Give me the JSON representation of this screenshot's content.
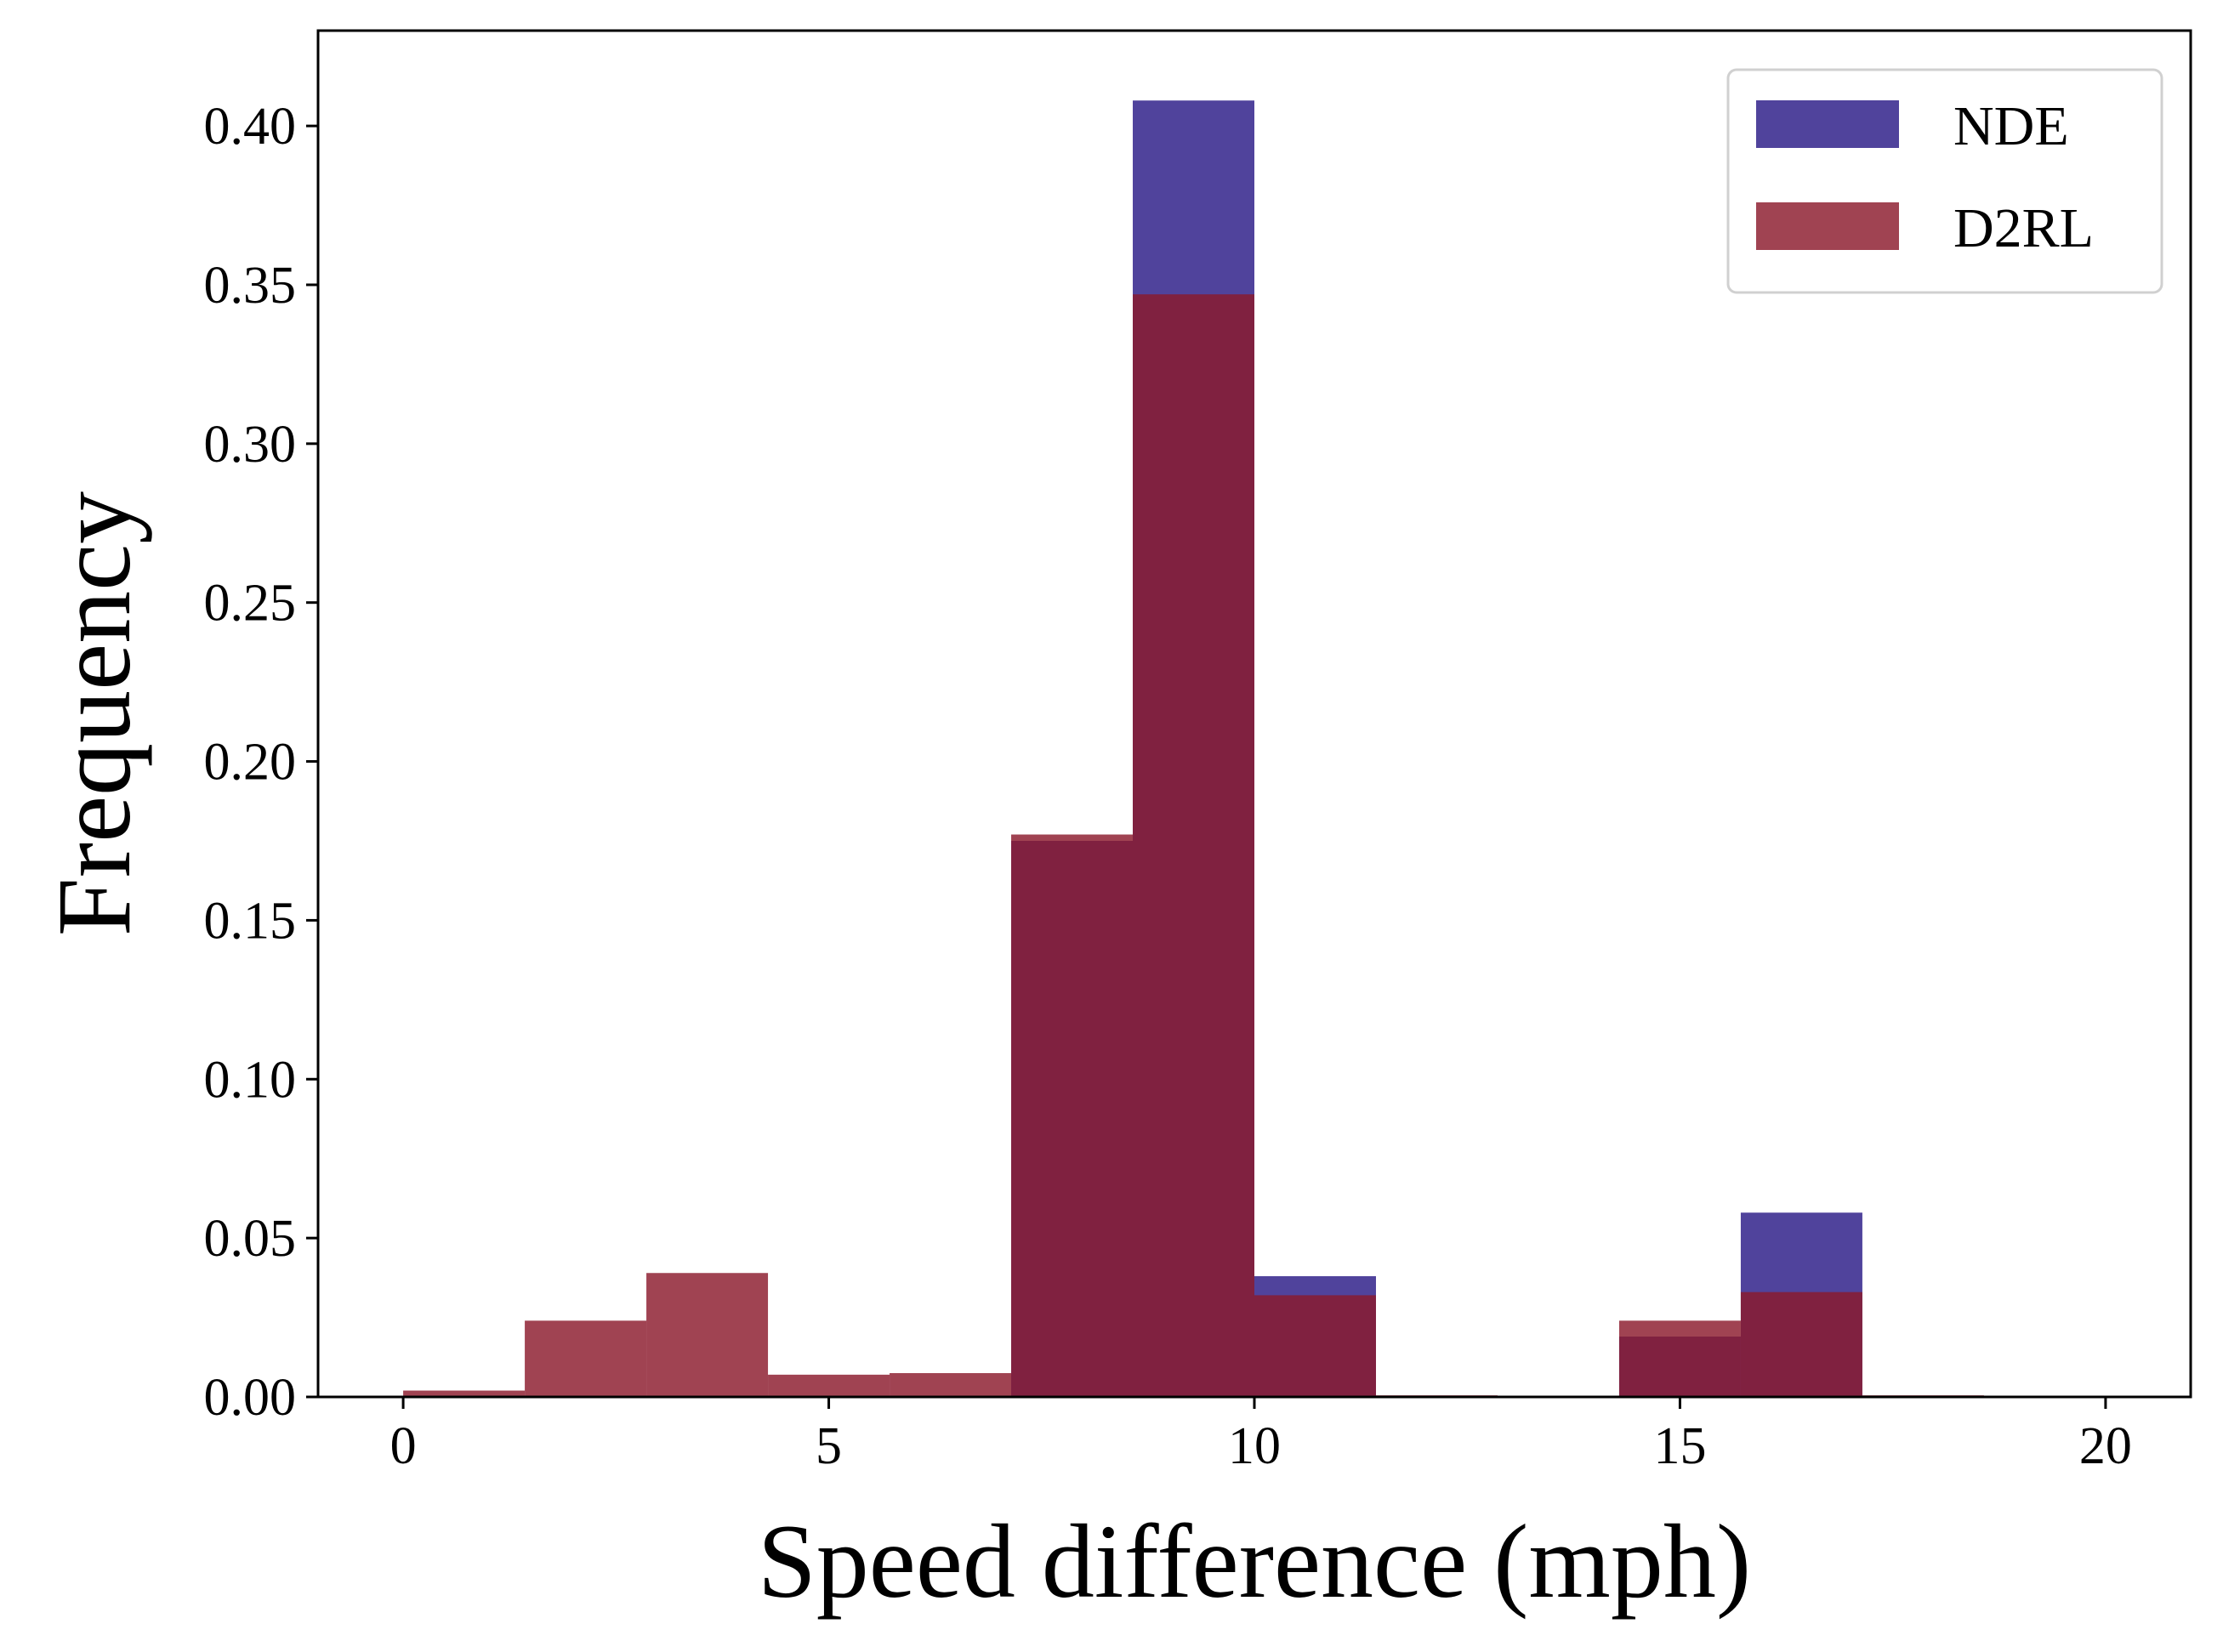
{
  "chart_data": {
    "type": "histogram",
    "xlabel": "Speed difference (mph)",
    "ylabel": "Frequency",
    "xlim": [
      -1.0,
      21.0
    ],
    "ylim": [
      0.0,
      0.43
    ],
    "xticks": [
      {
        "value": 0,
        "label": "0"
      },
      {
        "value": 5,
        "label": "5"
      },
      {
        "value": 10,
        "label": "10"
      },
      {
        "value": 15,
        "label": "15"
      },
      {
        "value": 20,
        "label": "20"
      }
    ],
    "yticks": [
      {
        "value": 0.0,
        "label": "0.00"
      },
      {
        "value": 0.05,
        "label": "0.05"
      },
      {
        "value": 0.1,
        "label": "0.10"
      },
      {
        "value": 0.15,
        "label": "0.15"
      },
      {
        "value": 0.2,
        "label": "0.20"
      },
      {
        "value": 0.25,
        "label": "0.25"
      },
      {
        "value": 0.3,
        "label": "0.30"
      },
      {
        "value": 0.35,
        "label": "0.35"
      },
      {
        "value": 0.4,
        "label": "0.40"
      }
    ],
    "bin_edges": [
      0.0,
      1.4286,
      2.8571,
      4.2857,
      5.7143,
      7.1429,
      8.5714,
      10.0,
      11.4286,
      12.8571,
      14.2857,
      15.7143,
      17.1429,
      18.5714,
      20.0
    ],
    "grid": false,
    "legend_position": "top-right",
    "series": [
      {
        "name": "NDE",
        "color": "#2a1a86",
        "opacity": 0.82,
        "values": [
          0.0,
          0.0,
          0.0,
          0.0,
          0.0,
          0.175,
          0.408,
          0.038,
          0.0,
          0.0,
          0.019,
          0.058,
          0.0,
          0.0
        ]
      },
      {
        "name": "D2RL",
        "color": "#8b1a2c",
        "opacity": 0.82,
        "values": [
          0.002,
          0.024,
          0.039,
          0.007,
          0.0075,
          0.177,
          0.347,
          0.032,
          0.0005,
          0.0,
          0.024,
          0.033,
          0.0005,
          0.0
        ]
      }
    ]
  }
}
